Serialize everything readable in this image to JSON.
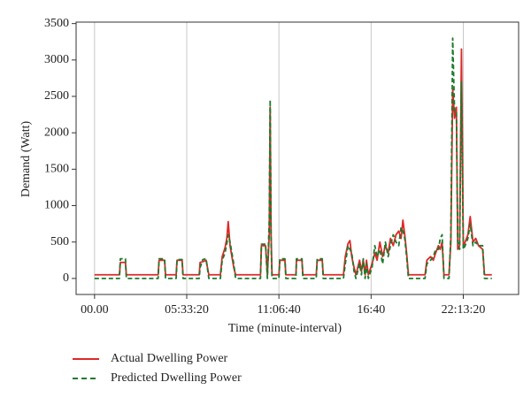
{
  "chart_data": {
    "type": "line",
    "xlabel": "Time (minute-interval)",
    "ylabel": "Demand (Watt)",
    "xlim": [
      -4000,
      92000
    ],
    "ylim": [
      -220,
      3520
    ],
    "xticks": [
      {
        "value": 0,
        "label": "00.00"
      },
      {
        "value": 20000,
        "label": "05:33:20"
      },
      {
        "value": 40000,
        "label": "11:06:40"
      },
      {
        "value": 60000,
        "label": "16:40"
      },
      {
        "value": 80000,
        "label": "22:13:20"
      }
    ],
    "yticks": [
      0,
      500,
      1000,
      1500,
      2000,
      2500,
      3000,
      3500
    ],
    "grid": "x",
    "legend": "bottom",
    "x": [
      0,
      5400,
      5600,
      6700,
      6900,
      13800,
      14000,
      15200,
      15400,
      17700,
      17900,
      19000,
      19200,
      22700,
      22900,
      23500,
      24200,
      24800,
      27300,
      27700,
      28300,
      28700,
      29000,
      29400,
      29800,
      30200,
      30600,
      36000,
      36200,
      37100,
      37500,
      37900,
      38100,
      38300,
      38500,
      40000,
      40200,
      41300,
      41500,
      43700,
      43800,
      45000,
      45200,
      48100,
      48300,
      49400,
      49600,
      54000,
      54400,
      55000,
      55400,
      55800,
      56300,
      56700,
      57500,
      57900,
      58300,
      58700,
      59000,
      59400,
      60200,
      60800,
      61300,
      61900,
      62500,
      63100,
      63700,
      64200,
      64800,
      65400,
      66000,
      66500,
      66900,
      67300,
      67700,
      68100,
      71700,
      72100,
      72900,
      73500,
      74000,
      74600,
      75000,
      75400,
      75800,
      76900,
      77300,
      77700,
      78100,
      78500,
      78800,
      79200,
      79600,
      80000,
      80400,
      81000,
      81500,
      82100,
      82700,
      83300,
      84200,
      84600,
      86200
    ],
    "series": [
      {
        "name": "Actual Dwelling Power",
        "color": "#e02828",
        "dash": false,
        "values": [
          50,
          50,
          220,
          220,
          50,
          50,
          250,
          250,
          50,
          50,
          250,
          250,
          50,
          50,
          220,
          230,
          250,
          50,
          50,
          300,
          420,
          550,
          780,
          450,
          300,
          150,
          50,
          50,
          450,
          450,
          50,
          600,
          2350,
          600,
          50,
          50,
          250,
          250,
          50,
          50,
          250,
          250,
          50,
          50,
          250,
          250,
          50,
          50,
          300,
          480,
          520,
          300,
          150,
          50,
          250,
          100,
          250,
          50,
          250,
          50,
          200,
          350,
          250,
          500,
          300,
          450,
          350,
          550,
          450,
          600,
          650,
          550,
          800,
          600,
          350,
          50,
          50,
          250,
          300,
          250,
          350,
          450,
          400,
          500,
          50,
          50,
          500,
          2600,
          2200,
          2350,
          400,
          450,
          3150,
          450,
          500,
          600,
          850,
          500,
          550,
          450,
          400,
          50,
          50
        ]
      },
      {
        "name": "Predicted Dwelling Power",
        "color": "#1c7a2c",
        "dash": true,
        "values": [
          0,
          0,
          270,
          270,
          0,
          0,
          270,
          270,
          0,
          0,
          260,
          260,
          0,
          0,
          150,
          260,
          270,
          0,
          0,
          250,
          350,
          480,
          600,
          500,
          350,
          200,
          0,
          0,
          470,
          470,
          0,
          800,
          2450,
          500,
          0,
          0,
          270,
          270,
          0,
          0,
          270,
          270,
          0,
          0,
          270,
          270,
          0,
          0,
          200,
          450,
          400,
          350,
          100,
          0,
          200,
          50,
          270,
          0,
          200,
          0,
          150,
          450,
          300,
          400,
          200,
          500,
          300,
          450,
          600,
          500,
          450,
          700,
          650,
          550,
          300,
          0,
          0,
          200,
          250,
          300,
          400,
          400,
          550,
          600,
          0,
          0,
          600,
          3300,
          2300,
          2300,
          500,
          400,
          2700,
          400,
          450,
          550,
          750,
          450,
          500,
          450,
          450,
          0,
          0
        ]
      }
    ]
  }
}
